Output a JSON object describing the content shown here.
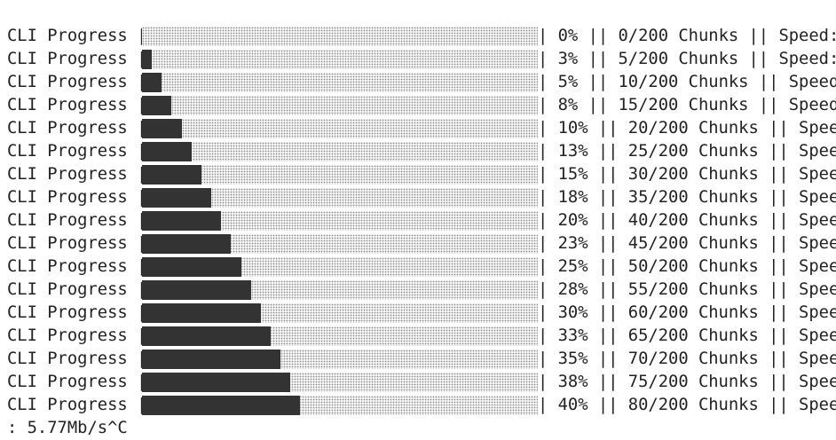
{
  "rows": [
    {
      "label": "CLI Progress",
      "percent": "0%",
      "chunks": "0/200 Chunks",
      "speed": "Speed:"
    },
    {
      "label": "CLI Progress",
      "percent": "3%",
      "chunks": "5/200 Chunks",
      "speed": "Speed:"
    },
    {
      "label": "CLI Progress",
      "percent": "5%",
      "chunks": "10/200 Chunks",
      "speed": "Speed:"
    },
    {
      "label": "CLI Progress",
      "percent": "8%",
      "chunks": "15/200 Chunks",
      "speed": "Speed:"
    },
    {
      "label": "CLI Progress",
      "percent": "10%",
      "chunks": "20/200 Chunks",
      "speed": "Speed"
    },
    {
      "label": "CLI Progress",
      "percent": "13%",
      "chunks": "25/200 Chunks",
      "speed": "Speed"
    },
    {
      "label": "CLI Progress",
      "percent": "15%",
      "chunks": "30/200 Chunks",
      "speed": "Speed"
    },
    {
      "label": "CLI Progress",
      "percent": "18%",
      "chunks": "35/200 Chunks",
      "speed": "Speed"
    },
    {
      "label": "CLI Progress",
      "percent": "20%",
      "chunks": "40/200 Chunks",
      "speed": "Speed"
    },
    {
      "label": "CLI Progress",
      "percent": "23%",
      "chunks": "45/200 Chunks",
      "speed": "Speed"
    },
    {
      "label": "CLI Progress",
      "percent": "25%",
      "chunks": "50/200 Chunks",
      "speed": "Speed"
    },
    {
      "label": "CLI Progress",
      "percent": "28%",
      "chunks": "55/200 Chunks",
      "speed": "Speed"
    },
    {
      "label": "CLI Progress",
      "percent": "30%",
      "chunks": "60/200 Chunks",
      "speed": "Speed"
    },
    {
      "label": "CLI Progress",
      "percent": "33%",
      "chunks": "65/200 Chunks",
      "speed": "Speed"
    },
    {
      "label": "CLI Progress",
      "percent": "35%",
      "chunks": "70/200 Chunks",
      "speed": "Speed"
    },
    {
      "label": "CLI Progress",
      "percent": "38%",
      "chunks": "75/200 Chunks",
      "speed": "Speed"
    },
    {
      "label": "CLI Progress",
      "percent": "40%",
      "chunks": "80/200 Chunks",
      "speed": "Speed"
    }
  ],
  "bar_edge": "|",
  "separator": "||",
  "last_line": ": 5.77Mb/s^C"
}
